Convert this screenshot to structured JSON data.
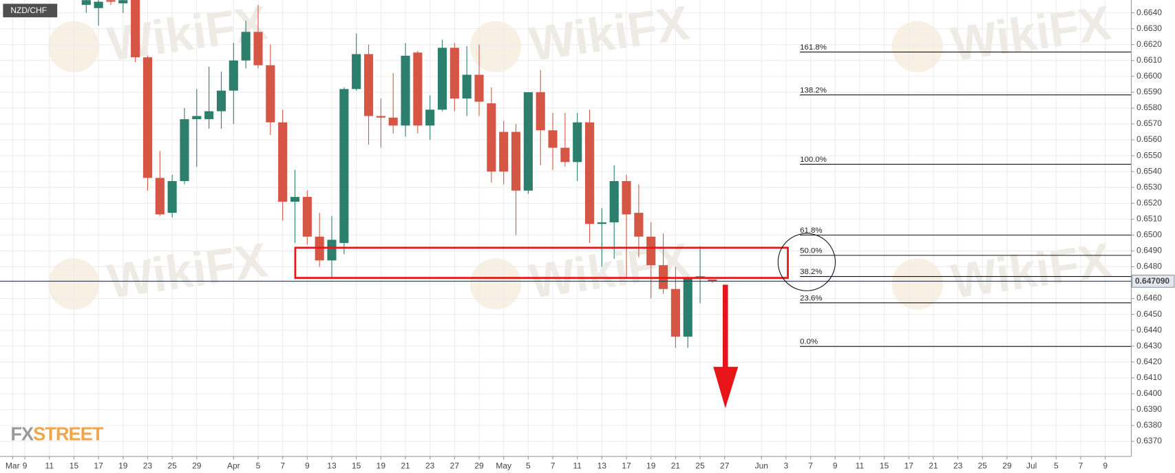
{
  "chart_data": {
    "type": "candlestick",
    "title": "NZD/CHF",
    "categories": [
      "Mar",
      "9",
      null,
      "11",
      null,
      "15",
      null,
      "17",
      null,
      "19",
      null,
      "23",
      null,
      "25",
      null,
      "29",
      null,
      null,
      "Apr",
      null,
      "5",
      null,
      "7",
      null,
      "9",
      null,
      "13",
      null,
      "15",
      null,
      "19",
      null,
      "21",
      null,
      "23",
      null,
      "27",
      null,
      "29",
      null,
      "May",
      null,
      "5",
      null,
      "7",
      null,
      "11",
      null,
      "13",
      null,
      "17",
      null,
      "19",
      null,
      "21",
      null,
      "25",
      null,
      "27",
      null,
      null,
      "Jun",
      null,
      "3",
      null,
      "7",
      null,
      "9",
      null,
      "11",
      null,
      "15",
      null,
      "17",
      null,
      "21",
      null,
      "23",
      null,
      "25",
      null,
      "29",
      null,
      "Jul",
      null,
      "5",
      null,
      "7",
      null,
      "9"
    ],
    "open": [
      null,
      null,
      null,
      null,
      null,
      null,
      0.6645,
      0.6643,
      0.6648,
      0.6646,
      0.665,
      0.6612,
      0.6536,
      0.6514,
      0.6534,
      0.6573,
      0.6573,
      0.6578,
      0.6591,
      0.661,
      0.6628,
      0.6607,
      0.6571,
      0.6521,
      0.6524,
      0.6499,
      0.6484,
      0.6495,
      0.6592,
      0.6614,
      0.6575,
      0.6574,
      0.6569,
      0.6615,
      0.6569,
      0.6579,
      0.6618,
      0.6586,
      0.6601,
      0.6583,
      0.6565,
      0.6565,
      0.6528,
      0.659,
      0.6566,
      0.6555,
      0.6546,
      0.6571,
      0.6507,
      0.6508,
      0.6534,
      0.6514,
      0.6499,
      0.6481,
      0.6466,
      0.6436,
      0.6473,
      0.6472,
      null,
      null,
      null,
      null,
      null,
      null,
      null,
      null,
      null,
      null,
      null,
      null,
      null,
      null,
      null,
      null,
      null,
      null,
      null,
      null,
      null,
      null,
      null,
      null,
      null,
      null,
      null,
      null,
      null,
      null,
      null,
      null
    ],
    "high": [
      null,
      null,
      null,
      null,
      null,
      null,
      0.6652,
      0.6655,
      0.6655,
      0.6652,
      0.6655,
      0.6613,
      0.6553,
      0.6538,
      0.658,
      0.6592,
      0.6606,
      0.6603,
      0.6621,
      0.6635,
      0.6645,
      0.662,
      0.6579,
      0.6541,
      0.6528,
      0.6514,
      0.6512,
      0.6593,
      0.6627,
      0.662,
      0.6586,
      0.6602,
      0.6621,
      0.6616,
      0.6588,
      0.6623,
      0.6621,
      0.6619,
      0.662,
      0.6593,
      0.6572,
      0.657,
      0.659,
      0.6604,
      0.6577,
      0.6577,
      0.6577,
      0.6579,
      0.6517,
      0.6544,
      0.6538,
      0.6532,
      0.6508,
      0.6501,
      0.648,
      0.6474,
      0.6493,
      0.6472,
      null,
      null,
      null,
      null,
      null,
      null,
      null,
      null,
      null,
      null,
      null,
      null,
      null,
      null,
      null,
      null,
      null,
      null,
      null,
      null,
      null,
      null,
      null,
      null,
      null,
      null,
      null,
      null,
      null,
      null,
      null,
      null
    ],
    "low": [
      null,
      null,
      null,
      null,
      null,
      null,
      0.664,
      0.6632,
      0.6645,
      0.664,
      0.6609,
      0.6528,
      0.6512,
      0.6511,
      0.6532,
      0.6543,
      0.6567,
      0.6567,
      0.657,
      0.6605,
      0.6605,
      0.6563,
      0.6509,
      0.6495,
      0.6494,
      0.648,
      0.6473,
      0.6488,
      0.6591,
      0.6557,
      0.6555,
      0.6564,
      0.6562,
      0.6564,
      0.656,
      0.6578,
      0.6578,
      0.6575,
      0.6575,
      0.6533,
      0.6532,
      0.65,
      0.6526,
      0.6544,
      0.6541,
      0.6543,
      0.6534,
      0.6495,
      0.648,
      0.6485,
      0.6473,
      0.6486,
      0.646,
      0.6463,
      0.6429,
      0.6429,
      0.6457,
      0.647,
      null,
      null,
      null,
      null,
      null,
      null,
      null,
      null,
      null,
      null,
      null,
      null,
      null,
      null,
      null,
      null,
      null,
      null,
      null,
      null,
      null,
      null,
      null,
      null,
      null,
      null,
      null,
      null,
      null,
      null,
      null,
      null
    ],
    "close": [
      null,
      null,
      null,
      null,
      null,
      null,
      0.6648,
      0.6647,
      0.6647,
      0.6648,
      0.6612,
      0.6536,
      0.6513,
      0.6534,
      0.6573,
      0.6575,
      0.6578,
      0.6591,
      0.661,
      0.6628,
      0.6607,
      0.6571,
      0.6521,
      0.6524,
      0.6499,
      0.6484,
      0.6497,
      0.6592,
      0.6614,
      0.6575,
      0.6574,
      0.6569,
      0.6613,
      0.6569,
      0.6579,
      0.6618,
      0.6586,
      0.6601,
      0.6584,
      0.654,
      0.654,
      0.6528,
      0.659,
      0.6566,
      0.6555,
      0.6546,
      0.6571,
      0.6507,
      0.6508,
      0.6534,
      0.6513,
      0.6499,
      0.6481,
      0.6466,
      0.6436,
      0.6473,
      0.6474,
      0.64709,
      null,
      null,
      null,
      null,
      null,
      null,
      null,
      null,
      null,
      null,
      null,
      null,
      null,
      null,
      null,
      null,
      null,
      null,
      null,
      null,
      null,
      null,
      null,
      null,
      null,
      null,
      null,
      null,
      null,
      null,
      null,
      null
    ],
    "up_color": "#2b7f6c",
    "down_color": "#d55645",
    "ylim": [
      0.63605,
      0.66481
    ],
    "yticks": [
      {
        "value": 0.637,
        "label": "0.6370"
      },
      {
        "value": 0.638,
        "label": "0.6380"
      },
      {
        "value": 0.639,
        "label": "0.6390"
      },
      {
        "value": 0.64,
        "label": "0.6400"
      },
      {
        "value": 0.641,
        "label": "0.6410"
      },
      {
        "value": 0.642,
        "label": "0.6420"
      },
      {
        "value": 0.643,
        "label": "0.6430"
      },
      {
        "value": 0.644,
        "label": "0.6440"
      },
      {
        "value": 0.645,
        "label": "0.6450"
      },
      {
        "value": 0.646,
        "label": "0.6460"
      },
      {
        "value": 0.647,
        "label": "0.6470"
      },
      {
        "value": 0.648,
        "label": "0.6480"
      },
      {
        "value": 0.649,
        "label": "0.6490"
      },
      {
        "value": 0.65,
        "label": "0.6500"
      },
      {
        "value": 0.651,
        "label": "0.6510"
      },
      {
        "value": 0.652,
        "label": "0.6520"
      },
      {
        "value": 0.653,
        "label": "0.6530"
      },
      {
        "value": 0.654,
        "label": "0.6540"
      },
      {
        "value": 0.655,
        "label": "0.6550"
      },
      {
        "value": 0.656,
        "label": "0.6560"
      },
      {
        "value": 0.657,
        "label": "0.6570"
      },
      {
        "value": 0.658,
        "label": "0.6580"
      },
      {
        "value": 0.659,
        "label": "0.6590"
      },
      {
        "value": 0.66,
        "label": "0.6600"
      },
      {
        "value": 0.661,
        "label": "0.6610"
      },
      {
        "value": 0.662,
        "label": "0.6620"
      },
      {
        "value": 0.663,
        "label": "0.6630"
      },
      {
        "value": 0.664,
        "label": "0.6640"
      }
    ],
    "grid": true,
    "current_price": {
      "value": 0.64709,
      "label": "0.647090"
    },
    "fib_levels": [
      {
        "value": 0.66153,
        "label": "161.8%"
      },
      {
        "value": 0.65883,
        "label": "138.2%"
      },
      {
        "value": 0.65446,
        "label": "100.0%"
      },
      {
        "value": 0.65,
        "label": "61.8%"
      },
      {
        "value": 0.64872,
        "label": "50.0%"
      },
      {
        "value": 0.64739,
        "label": "38.2%"
      },
      {
        "value": 0.64573,
        "label": "23.6%"
      },
      {
        "value": 0.64298,
        "label": "0.0%"
      }
    ],
    "zone": [
      0.6473,
      0.6492
    ],
    "watermark": "WikiFX",
    "logo": [
      "FX",
      "STREET"
    ]
  }
}
